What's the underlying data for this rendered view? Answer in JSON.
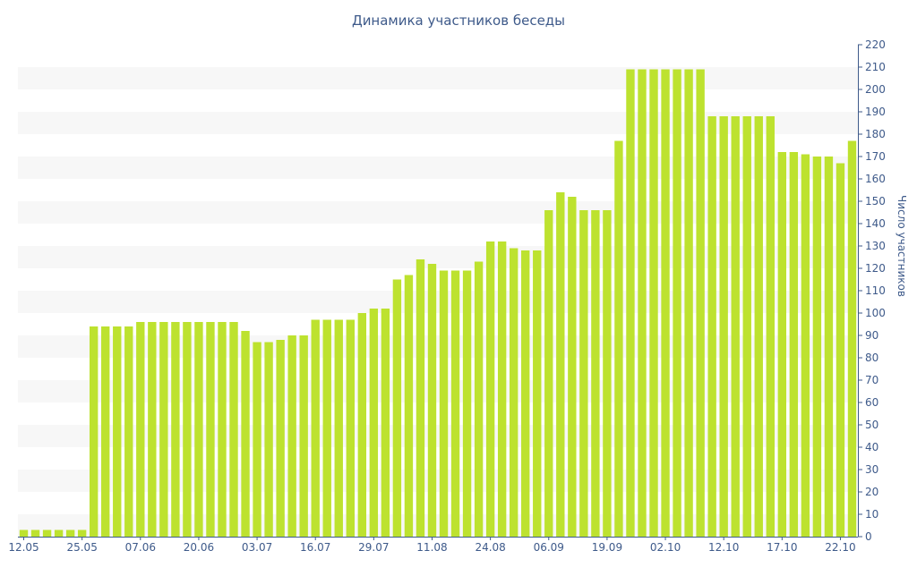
{
  "chart_data": {
    "type": "bar",
    "title": "Динамика участников беседы",
    "xlabel": "",
    "ylabel": "Число участников",
    "ylim": [
      0,
      220
    ],
    "y_ticks": [
      0,
      10,
      20,
      30,
      40,
      50,
      60,
      70,
      80,
      90,
      100,
      110,
      120,
      130,
      140,
      150,
      160,
      170,
      180,
      190,
      200,
      210,
      220
    ],
    "x_tick_labels": [
      "12.05",
      "25.05",
      "07.06",
      "20.06",
      "03.07",
      "16.07",
      "29.07",
      "11.08",
      "24.08",
      "06.09",
      "19.09",
      "02.10",
      "12.10",
      "17.10",
      "22.10"
    ],
    "x_tick_positions": [
      0,
      5,
      10,
      15,
      20,
      25,
      30,
      35,
      40,
      45,
      50,
      55,
      60,
      65,
      70
    ],
    "values": [
      3,
      3,
      3,
      3,
      3,
      3,
      94,
      94,
      94,
      94,
      96,
      96,
      96,
      96,
      96,
      96,
      96,
      96,
      96,
      92,
      87,
      87,
      88,
      90,
      90,
      97,
      97,
      97,
      97,
      100,
      102,
      102,
      115,
      117,
      124,
      122,
      119,
      119,
      119,
      123,
      132,
      132,
      129,
      128,
      128,
      146,
      154,
      152,
      146,
      146,
      146,
      177,
      209,
      209,
      209,
      209,
      209,
      209,
      209,
      188,
      188,
      188,
      188,
      188,
      188,
      172,
      172,
      171,
      170,
      170,
      167,
      177
    ],
    "bar_color": "#bde22f",
    "stripe_color": "#f7f7f7",
    "text_color": "#3e5a8a",
    "axis_color": "#3e5a8a",
    "grid": "alternating-bands",
    "legend": "none",
    "y_axis_position": "right"
  }
}
